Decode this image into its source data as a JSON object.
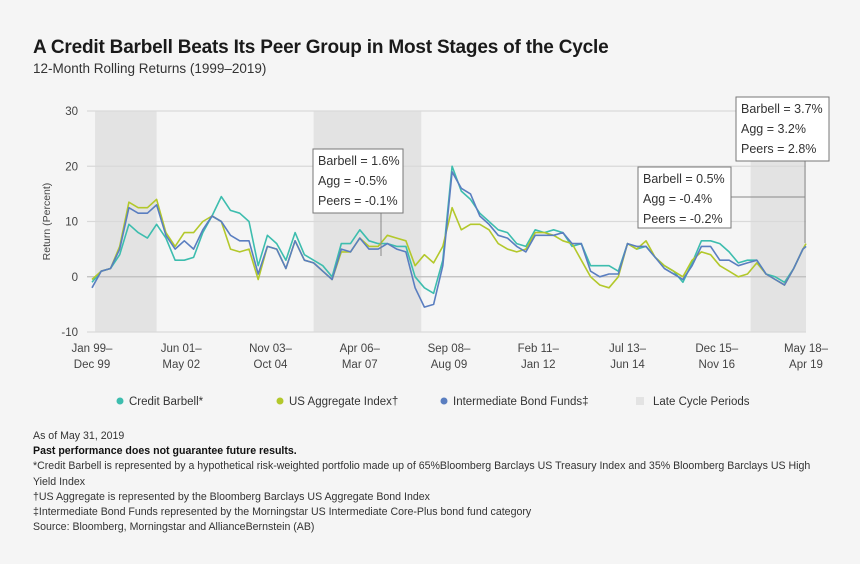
{
  "title": "A Credit Barbell Beats Its Peer Group in Most Stages of the Cycle",
  "subtitle": "12-Month Rolling Returns (1999–2019)",
  "chart_data": {
    "type": "line",
    "ylabel": "Return (Percent)",
    "ylim": [
      -10,
      30
    ],
    "yticks": [
      30,
      20,
      10,
      0,
      -10
    ],
    "grid": true,
    "legend_placement": "bottom",
    "xticks": [
      {
        "at": "1999-12",
        "line1": "Jan 99–",
        "line2": "Dec 99"
      },
      {
        "at": "2002-05",
        "line1": "Jun 01–",
        "line2": "May 02"
      },
      {
        "at": "2004-10",
        "line1": "Nov 03–",
        "line2": "Oct 04"
      },
      {
        "at": "2007-03",
        "line1": "Apr 06–",
        "line2": "Mar 07"
      },
      {
        "at": "2009-08",
        "line1": "Sep 08–",
        "line2": "Aug 09"
      },
      {
        "at": "2012-01",
        "line1": "Feb 11–",
        "line2": "Jan 12"
      },
      {
        "at": "2014-06",
        "line1": "Jul 13–",
        "line2": "Jun 14"
      },
      {
        "at": "2016-11",
        "line1": "Dec 15–",
        "line2": "Nov 16"
      },
      {
        "at": "2019-04",
        "line1": "May 18–",
        "line2": "Apr 19"
      }
    ],
    "late_cycle_periods": [
      [
        "2000-01",
        "2001-09"
      ],
      [
        "2005-12",
        "2008-11"
      ],
      [
        "2017-10",
        "2019-04"
      ]
    ],
    "x": [
      "1999-12",
      "2000-03",
      "2000-06",
      "2000-09",
      "2000-12",
      "2001-03",
      "2001-06",
      "2001-09",
      "2001-12",
      "2002-03",
      "2002-06",
      "2002-09",
      "2002-12",
      "2003-03",
      "2003-06",
      "2003-09",
      "2003-12",
      "2004-03",
      "2004-06",
      "2004-09",
      "2004-12",
      "2005-03",
      "2005-06",
      "2005-09",
      "2005-12",
      "2006-03",
      "2006-06",
      "2006-09",
      "2006-12",
      "2007-03",
      "2007-06",
      "2007-09",
      "2007-12",
      "2008-03",
      "2008-06",
      "2008-09",
      "2008-12",
      "2009-03",
      "2009-06",
      "2009-09",
      "2009-12",
      "2010-03",
      "2010-06",
      "2010-09",
      "2010-12",
      "2011-03",
      "2011-06",
      "2011-09",
      "2011-12",
      "2012-03",
      "2012-06",
      "2012-09",
      "2012-12",
      "2013-03",
      "2013-06",
      "2013-09",
      "2013-12",
      "2014-03",
      "2014-06",
      "2014-09",
      "2014-12",
      "2015-03",
      "2015-06",
      "2015-09",
      "2015-12",
      "2016-03",
      "2016-06",
      "2016-09",
      "2016-12",
      "2017-03",
      "2017-06",
      "2017-09",
      "2017-12",
      "2018-03",
      "2018-06",
      "2018-09",
      "2018-12",
      "2019-03",
      "2019-04"
    ],
    "series": [
      {
        "name": "Credit Barbell*",
        "color": "#3dbdae",
        "values": [
          -1,
          1,
          1.5,
          4,
          9.5,
          8,
          7,
          9.5,
          7,
          3,
          3,
          3.5,
          8,
          11,
          14.5,
          12,
          11.5,
          10,
          2,
          7.5,
          6,
          3,
          8,
          4,
          3,
          2,
          0,
          6,
          6,
          8.5,
          6.5,
          6,
          6,
          5.5,
          5.5,
          0,
          -2,
          -3,
          3,
          20,
          15.5,
          14,
          11.5,
          10,
          8.5,
          8,
          6,
          5.5,
          8.5,
          8,
          8.5,
          8,
          5.5,
          6,
          2,
          2,
          2,
          1,
          6,
          5,
          5.5,
          3.5,
          2,
          1,
          -1,
          2.5,
          6.5,
          6.5,
          6,
          4.5,
          2.5,
          3,
          3,
          0.5,
          0,
          -1,
          1.5,
          5,
          5.5
        ]
      },
      {
        "name": "US Aggregate Index†",
        "color": "#b3c82b",
        "values": [
          -0.5,
          1,
          1.5,
          5.5,
          13.5,
          12.5,
          12.5,
          14,
          8,
          5.5,
          8,
          8,
          10,
          11,
          10,
          5,
          4.5,
          5,
          -0.5,
          5.5,
          5,
          1.5,
          6.5,
          3,
          2.5,
          1,
          -0.5,
          4.5,
          4.5,
          7,
          5.5,
          5.5,
          7.5,
          7,
          6.5,
          2,
          4,
          2.5,
          5.5,
          12.5,
          8.5,
          9.5,
          9.5,
          8.5,
          6,
          5,
          4.5,
          5,
          8,
          8,
          7.5,
          6.5,
          6,
          3,
          0,
          -1.5,
          -2,
          0,
          6,
          5,
          6.5,
          3.5,
          2,
          1,
          0,
          3,
          4.5,
          4,
          2,
          1,
          0,
          0.5,
          2.5,
          0.5,
          -0.5,
          -1.5,
          1.5,
          5,
          6
        ]
      },
      {
        "name": "Intermediate Bond Funds‡",
        "color": "#5a7ec0",
        "values": [
          -2,
          1,
          1.5,
          5,
          12.5,
          11.5,
          11.5,
          13,
          7.5,
          5,
          6.5,
          5,
          8.5,
          11,
          10,
          7.5,
          6.5,
          6.5,
          0.5,
          5.5,
          5,
          1.5,
          6.5,
          3,
          2.5,
          1,
          -0.5,
          5,
          4.5,
          7,
          5,
          5,
          6,
          5,
          4.5,
          -2,
          -5.5,
          -5,
          2,
          19,
          16,
          15,
          11,
          9.5,
          7.5,
          7,
          5.5,
          4.5,
          7.5,
          7.5,
          7.5,
          8,
          6,
          6,
          1,
          0,
          0.5,
          0.5,
          6,
          5.5,
          5.5,
          3.5,
          1.5,
          0.5,
          -0.5,
          2,
          5.5,
          5.5,
          3,
          3,
          2,
          2.5,
          3,
          0.5,
          -0.5,
          -1.5,
          1.5,
          5,
          5.5
        ]
      }
    ],
    "late_cycle_label": "Late Cycle Periods",
    "late_cycle_color": "#e3e3e3",
    "annotations": [
      {
        "lines": [
          "Barbell = 1.6%",
          "Agg = -0.5%",
          "Peers = -0.1%"
        ]
      },
      {
        "lines": [
          "Barbell = 0.5%",
          "Agg = -0.4%",
          "Peers = -0.2%"
        ]
      },
      {
        "lines": [
          "Barbell = 3.7%",
          "Agg = 3.2%",
          "Peers = 2.8%"
        ]
      }
    ]
  },
  "footnotes": {
    "as_of": "As of May 31, 2019",
    "disclaimer": "Past performance does not guarantee future results.",
    "note1": "*Credit Barbell is represented by a hypothetical risk-weighted portfolio made up of 65%Bloomberg Barclays US Treasury Index and 35% Bloomberg Barclays US High Yield Index",
    "note2": "†US Aggregate is represented by the Bloomberg Barclays US Aggregate Bond Index",
    "note3": "‡Intermediate Bond Funds represented by the Morningstar US Intermediate Core-Plus bond fund category",
    "source": "Source: Bloomberg, Morningstar and AllianceBernstein (AB)"
  }
}
